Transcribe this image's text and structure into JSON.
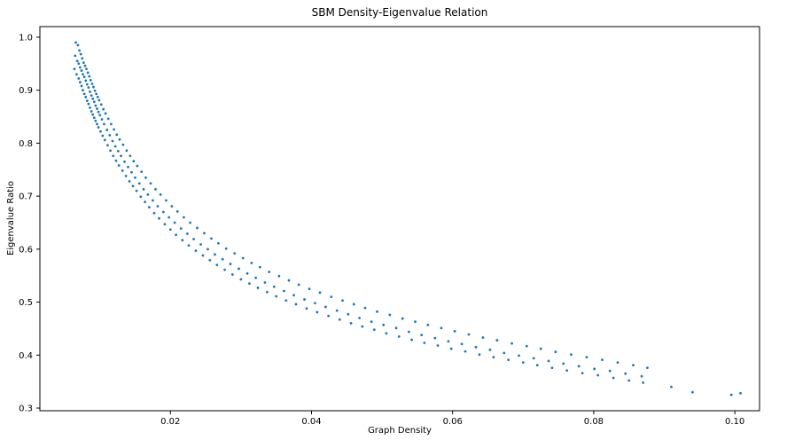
{
  "chart_data": {
    "type": "scatter",
    "title": "SBM Density-Eigenvalue Relation",
    "xlabel": "Graph Density",
    "ylabel": "Eigenvalue Ratio",
    "xlim": [
      0.0015,
      0.1035
    ],
    "ylim": [
      0.295,
      1.02
    ],
    "xticks": [
      0.02,
      0.04,
      0.06,
      0.08,
      0.1
    ],
    "xtick_labels": [
      "0.02",
      "0.04",
      "0.06",
      "0.08",
      "0.10"
    ],
    "yticks": [
      0.3,
      0.4,
      0.5,
      0.6,
      0.7,
      0.8,
      0.9,
      1.0
    ],
    "ytick_labels": [
      "0.3",
      "0.4",
      "0.5",
      "0.6",
      "0.7",
      "0.8",
      "0.9",
      "1.0"
    ],
    "grid": false,
    "marker_color": "#1f77b4",
    "series": [
      {
        "x": [
          0.0065,
          0.0068,
          0.007,
          0.0072,
          0.0074,
          0.0076,
          0.0078,
          0.008,
          0.0082,
          0.0084,
          0.0086,
          0.0088,
          0.009,
          0.0092,
          0.0094,
          0.0096,
          0.0098,
          0.01,
          0.0103,
          0.0106,
          0.011,
          0.0114,
          0.0118,
          0.0122,
          0.0126,
          0.013,
          0.0135,
          0.014,
          0.0145,
          0.015,
          0.0156,
          0.0162,
          0.0168,
          0.0175,
          0.0182,
          0.019,
          0.0198,
          0.0206,
          0.0215,
          0.0224,
          0.0233,
          0.0243,
          0.0253,
          0.0263,
          0.0274,
          0.0285,
          0.0297,
          0.0309,
          0.0321,
          0.0334,
          0.0347,
          0.0361,
          0.0375,
          0.039,
          0.0405,
          0.042,
          0.0436,
          0.0452,
          0.0468,
          0.0485,
          0.0502,
          0.052,
          0.0538,
          0.0556,
          0.0575,
          0.0594,
          0.0613,
          0.0633,
          0.0653,
          0.0673,
          0.0694,
          0.0715,
          0.0736,
          0.0757,
          0.0779,
          0.0801,
          0.0823,
          0.0845,
          0.0868,
          0.091,
          0.094,
          0.0995,
          0.1008
        ],
        "y": [
          0.965,
          0.955,
          0.95,
          0.943,
          0.937,
          0.93,
          0.925,
          0.918,
          0.911,
          0.905,
          0.897,
          0.89,
          0.884,
          0.878,
          0.871,
          0.865,
          0.859,
          0.853,
          0.845,
          0.836,
          0.825,
          0.815,
          0.804,
          0.794,
          0.785,
          0.776,
          0.765,
          0.755,
          0.745,
          0.735,
          0.724,
          0.713,
          0.703,
          0.692,
          0.681,
          0.67,
          0.66,
          0.65,
          0.639,
          0.629,
          0.619,
          0.609,
          0.6,
          0.59,
          0.581,
          0.572,
          0.563,
          0.554,
          0.546,
          0.537,
          0.529,
          0.521,
          0.513,
          0.505,
          0.498,
          0.491,
          0.484,
          0.477,
          0.47,
          0.463,
          0.457,
          0.451,
          0.444,
          0.438,
          0.432,
          0.426,
          0.421,
          0.415,
          0.41,
          0.404,
          0.399,
          0.394,
          0.389,
          0.384,
          0.379,
          0.374,
          0.37,
          0.365,
          0.36,
          0.34,
          0.33,
          0.325,
          0.328
        ]
      },
      {
        "x": [
          0.0066,
          0.0069,
          0.0071,
          0.0073,
          0.0075,
          0.0077,
          0.0079,
          0.0081,
          0.0083,
          0.0085,
          0.0087,
          0.0089,
          0.0091,
          0.0093,
          0.0095,
          0.0097,
          0.0099,
          0.0102,
          0.0105,
          0.0108,
          0.0112,
          0.0116,
          0.012,
          0.0124,
          0.0128,
          0.0133,
          0.0138,
          0.0143,
          0.0148,
          0.0153,
          0.0159,
          0.0165,
          0.0172,
          0.0179,
          0.0186,
          0.0194,
          0.0202,
          0.021,
          0.0219,
          0.0228,
          0.0238,
          0.0248,
          0.0258,
          0.0268,
          0.0279,
          0.0291,
          0.0303,
          0.0315,
          0.0327,
          0.034,
          0.0354,
          0.0368,
          0.0382,
          0.0397,
          0.0412,
          0.0428,
          0.0444,
          0.046,
          0.0476,
          0.0493,
          0.0511,
          0.0529,
          0.0547,
          0.0565,
          0.0584,
          0.0603,
          0.0623,
          0.0643,
          0.0663,
          0.0684,
          0.0705,
          0.0725,
          0.0746,
          0.0768,
          0.079,
          0.0812,
          0.0834,
          0.0856,
          0.0876
        ],
        "y": [
          0.99,
          0.985,
          0.975,
          0.968,
          0.96,
          0.952,
          0.946,
          0.94,
          0.933,
          0.926,
          0.919,
          0.912,
          0.906,
          0.899,
          0.893,
          0.887,
          0.881,
          0.873,
          0.864,
          0.856,
          0.846,
          0.836,
          0.826,
          0.816,
          0.807,
          0.797,
          0.786,
          0.776,
          0.766,
          0.757,
          0.746,
          0.735,
          0.724,
          0.713,
          0.703,
          0.692,
          0.681,
          0.671,
          0.66,
          0.65,
          0.64,
          0.63,
          0.62,
          0.611,
          0.601,
          0.592,
          0.583,
          0.574,
          0.566,
          0.557,
          0.549,
          0.541,
          0.533,
          0.525,
          0.518,
          0.51,
          0.503,
          0.496,
          0.489,
          0.482,
          0.476,
          0.469,
          0.463,
          0.457,
          0.451,
          0.445,
          0.439,
          0.433,
          0.428,
          0.422,
          0.417,
          0.412,
          0.406,
          0.401,
          0.396,
          0.391,
          0.386,
          0.381,
          0.376
        ]
      },
      {
        "x": [
          0.0064,
          0.0067,
          0.007,
          0.0072,
          0.0074,
          0.0076,
          0.0078,
          0.008,
          0.0082,
          0.0084,
          0.0086,
          0.0088,
          0.009,
          0.0092,
          0.0094,
          0.0096,
          0.0098,
          0.0101,
          0.0104,
          0.0107,
          0.0111,
          0.0115,
          0.0119,
          0.0123,
          0.0127,
          0.0132,
          0.0137,
          0.0142,
          0.0147,
          0.0152,
          0.0158,
          0.0164,
          0.017,
          0.0177,
          0.0184,
          0.0192,
          0.02,
          0.0208,
          0.0217,
          0.0226,
          0.0236,
          0.0246,
          0.0256,
          0.0266,
          0.0277,
          0.0288,
          0.03,
          0.0312,
          0.0324,
          0.0337,
          0.035,
          0.0364,
          0.0378,
          0.0393,
          0.0408,
          0.0424,
          0.044,
          0.0456,
          0.0472,
          0.0489,
          0.0506,
          0.0524,
          0.0542,
          0.056,
          0.0579,
          0.0598,
          0.0618,
          0.0638,
          0.0658,
          0.0679,
          0.07,
          0.072,
          0.0741,
          0.0762,
          0.0784,
          0.0806,
          0.0828,
          0.085,
          0.087
        ],
        "y": [
          0.94,
          0.93,
          0.922,
          0.915,
          0.908,
          0.9,
          0.893,
          0.887,
          0.88,
          0.874,
          0.867,
          0.86,
          0.854,
          0.848,
          0.842,
          0.836,
          0.83,
          0.822,
          0.814,
          0.806,
          0.796,
          0.786,
          0.776,
          0.767,
          0.758,
          0.748,
          0.738,
          0.728,
          0.719,
          0.71,
          0.699,
          0.689,
          0.679,
          0.668,
          0.658,
          0.647,
          0.637,
          0.627,
          0.617,
          0.607,
          0.597,
          0.588,
          0.579,
          0.57,
          0.561,
          0.552,
          0.543,
          0.535,
          0.527,
          0.519,
          0.511,
          0.503,
          0.496,
          0.488,
          0.481,
          0.474,
          0.467,
          0.46,
          0.454,
          0.448,
          0.441,
          0.435,
          0.429,
          0.423,
          0.418,
          0.412,
          0.407,
          0.401,
          0.396,
          0.391,
          0.386,
          0.381,
          0.376,
          0.371,
          0.366,
          0.362,
          0.357,
          0.352,
          0.348
        ]
      }
    ]
  }
}
